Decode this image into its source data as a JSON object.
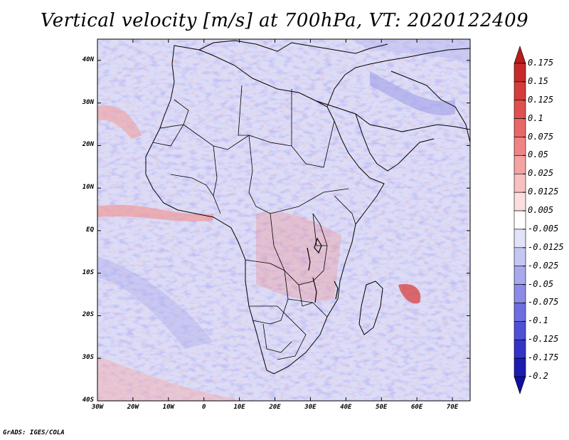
{
  "title": "Vertical velocity [m/s] at 700hPa, VT: 2020122409",
  "map": {
    "lat_labels": [
      "40N",
      "30N",
      "20N",
      "10N",
      "EQ",
      "10S",
      "20S",
      "30S",
      "40S"
    ],
    "lat_values": [
      40,
      30,
      20,
      10,
      0,
      -10,
      -20,
      -30,
      -40
    ],
    "lon_labels": [
      "30W",
      "20W",
      "10W",
      "0",
      "10E",
      "20E",
      "30E",
      "40E",
      "50E",
      "60E",
      "70E"
    ],
    "lon_values": [
      -30,
      -20,
      -10,
      0,
      10,
      20,
      30,
      40,
      50,
      60,
      70
    ],
    "lat_range": [
      -40,
      45
    ],
    "lon_range": [
      -30,
      75
    ]
  },
  "colorbar": {
    "labels": [
      "0.175",
      "0.15",
      "0.125",
      "0.1",
      "0.075",
      "0.05",
      "0.025",
      "0.0125",
      "0.005",
      "-0.005",
      "-0.0125",
      "-0.025",
      "-0.05",
      "-0.075",
      "-0.1",
      "-0.125",
      "-0.175",
      "-0.2"
    ],
    "colors": [
      "#b81c1c",
      "#c62a2a",
      "#d63c3c",
      "#e05050",
      "#e86868",
      "#ef8484",
      "#f4a2a2",
      "#f8c0c0",
      "#fcdede",
      "#ffffff",
      "#e2e2fa",
      "#c6c6f4",
      "#a8a8ee",
      "#8c8ce8",
      "#6e6ee0",
      "#5050d6",
      "#3434c6",
      "#1c1cb2",
      "#1010a0"
    ]
  },
  "footer": "GrADS: IGES/COLA"
}
